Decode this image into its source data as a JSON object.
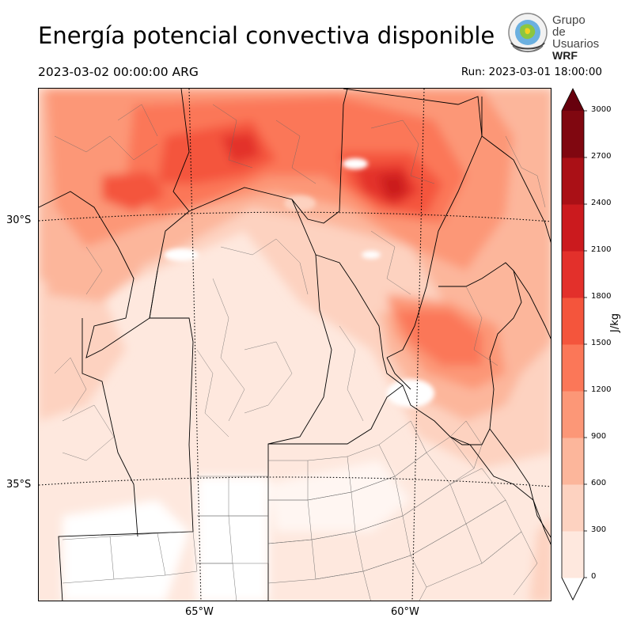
{
  "header": {
    "title": "Energía potencial convectiva disponible",
    "valid_time": "2023-03-02 00:00:00 ARG",
    "run_time": "Run: 2023-03-01 18:00:00"
  },
  "logo": {
    "line1": "Grupo de",
    "line2": "Usuarios",
    "line3": "WRF"
  },
  "map": {
    "latitude_labels": [
      "30°S",
      "35°S"
    ],
    "longitude_labels": [
      "65°W",
      "60°W"
    ]
  },
  "colorbar": {
    "units": "J/kg",
    "levels": [
      "0",
      "300",
      "600",
      "900",
      "1200",
      "1500",
      "1800",
      "2100",
      "2400",
      "2700",
      "3000"
    ],
    "colors": [
      "#fee8de",
      "#fdd2c0",
      "#fcb69b",
      "#fc9777",
      "#fb7758",
      "#f4553c",
      "#e3302b",
      "#cb1a1e",
      "#aa1016",
      "#800710"
    ],
    "extend": "both"
  }
}
